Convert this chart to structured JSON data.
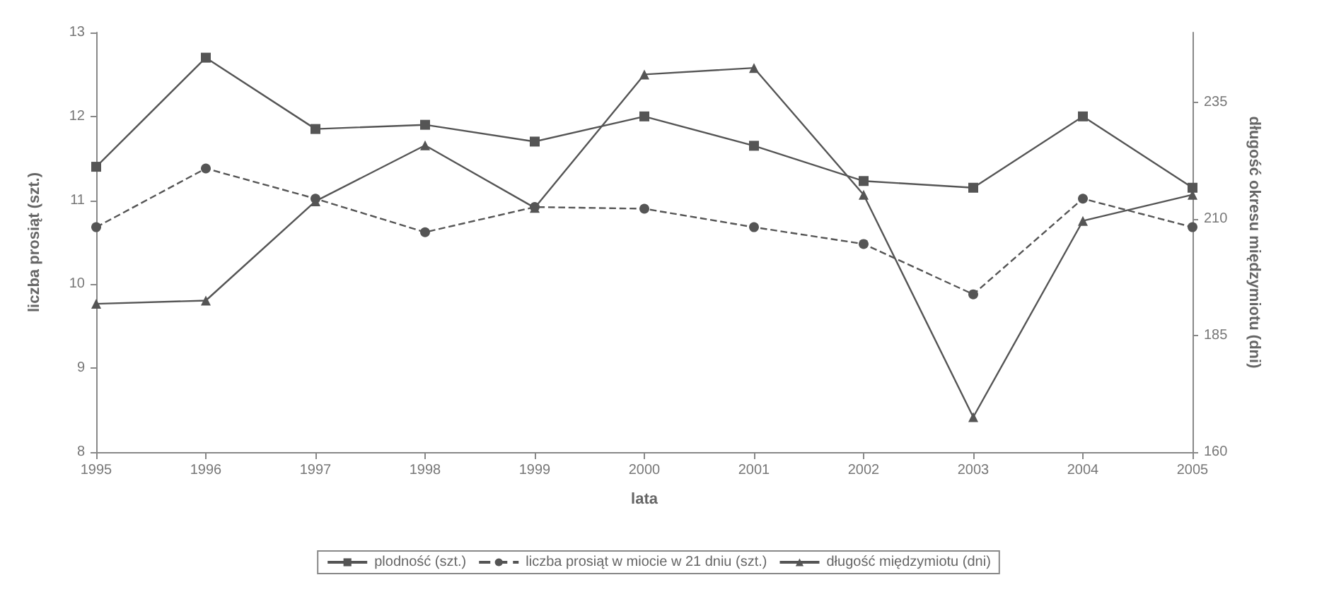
{
  "chart_data": {
    "type": "line",
    "categories": [
      "1995",
      "1996",
      "1997",
      "1998",
      "1999",
      "2000",
      "2001",
      "2002",
      "2003",
      "2004",
      "2005"
    ],
    "xlabel": "lata",
    "ylabel": "liczba prosiąt (szt.)",
    "y2label": "długość okresu międzymiotu (dni)",
    "ylim": [
      8,
      13
    ],
    "yticks": [
      8,
      9,
      10,
      11,
      12,
      13
    ],
    "y2lim": [
      160,
      250
    ],
    "y2ticks": [
      160,
      185,
      210,
      235
    ],
    "grid": false,
    "legend": "bottom",
    "series": [
      {
        "name": "plodność (szt.)",
        "color": "#555555",
        "marker": "square",
        "line_style": "solid",
        "values": [
          11.4,
          12.7,
          11.85,
          11.9,
          11.7,
          12.0,
          11.65,
          11.23,
          11.15,
          12.0,
          11.15
        ]
      },
      {
        "name": "liczba prosiąt w miocie w 21 dniu (szt.)",
        "color": "#555555",
        "marker": "circle",
        "line_style": "dashed",
        "values": [
          10.68,
          11.38,
          11.02,
          10.62,
          10.92,
          10.9,
          10.68,
          10.48,
          9.88,
          11.02,
          10.68
        ]
      },
      {
        "name": "długość międzymiotu (dni)",
        "color": "#555555",
        "marker": "triangle",
        "line_style": "solid",
        "axis": "y2",
        "values": [
          191.8,
          192.5,
          213.8,
          225.8,
          212.4,
          241,
          242.4,
          215.2,
          167.5,
          209.6,
          215.2
        ]
      }
    ]
  }
}
